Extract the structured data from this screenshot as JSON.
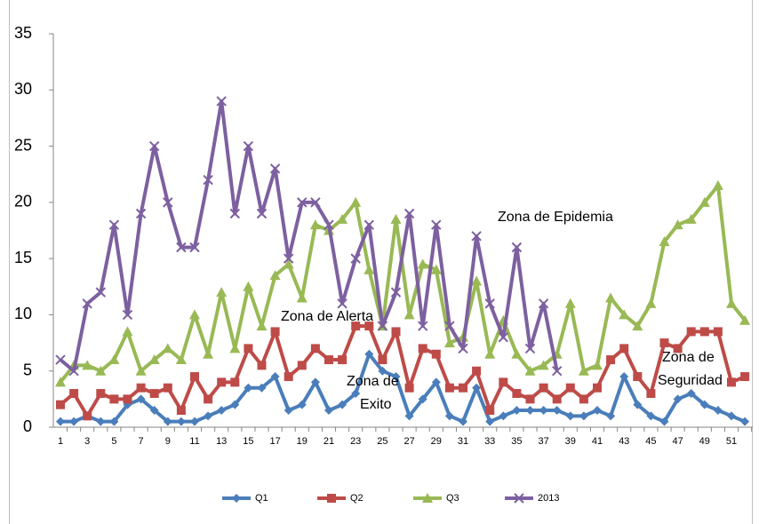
{
  "chart_data": {
    "type": "line",
    "categories": [
      1,
      null,
      3,
      null,
      5,
      null,
      7,
      null,
      9,
      null,
      11,
      null,
      13,
      null,
      15,
      null,
      17,
      null,
      19,
      null,
      21,
      null,
      23,
      null,
      25,
      null,
      27,
      null,
      29,
      null,
      31,
      null,
      33,
      null,
      35,
      null,
      37,
      null,
      39,
      null,
      41,
      null,
      43,
      null,
      45,
      null,
      47,
      null,
      49,
      null,
      51,
      null
    ],
    "series": [
      {
        "name": "Q1",
        "color": "#4a7ebb",
        "marker": "diamond",
        "values": [
          0.5,
          0.5,
          1,
          0.5,
          0.5,
          2,
          2.5,
          1.5,
          0.5,
          0.5,
          0.5,
          1,
          1.5,
          2,
          3.5,
          3.5,
          4.5,
          1.5,
          2,
          4,
          1.5,
          2,
          3,
          6.5,
          5,
          4.5,
          1,
          2.5,
          4,
          1,
          0.5,
          3.5,
          0.5,
          1,
          1.5,
          1.5,
          1.5,
          1.5,
          1,
          1,
          1.5,
          1,
          4.5,
          2,
          1,
          0.5,
          2.5,
          3,
          2,
          1.5,
          1,
          0.5
        ]
      },
      {
        "name": "Q2",
        "color": "#be4b48",
        "marker": "square",
        "values": [
          2,
          3,
          1,
          3,
          2.5,
          2.5,
          3.5,
          3,
          3.5,
          1.5,
          4.5,
          2.5,
          4,
          4,
          7,
          5.5,
          8.5,
          4.5,
          5.5,
          7,
          6,
          6,
          9,
          9,
          6,
          8.5,
          3.5,
          7,
          6.5,
          3.5,
          3.5,
          5,
          1.5,
          4,
          3,
          2.5,
          3.5,
          2.5,
          3.5,
          2.5,
          3.5,
          6,
          7,
          4.5,
          3,
          7.5,
          7,
          8.5,
          8.5,
          8.5,
          4,
          4.5
        ]
      },
      {
        "name": "Q3",
        "color": "#98b954",
        "marker": "triangle",
        "values": [
          4,
          5.5,
          5.5,
          5,
          6,
          8.5,
          5,
          6,
          7,
          6,
          10,
          6.5,
          12,
          7,
          12.5,
          9,
          13.5,
          14.5,
          11.5,
          18,
          17.5,
          18.5,
          20,
          14,
          9,
          18.5,
          10,
          14.5,
          14,
          7.5,
          8,
          13,
          6.5,
          9.5,
          6.5,
          5,
          5.5,
          6.5,
          11,
          5,
          5.5,
          11.5,
          10,
          9,
          11,
          16.5,
          18,
          18.5,
          20,
          21.5,
          11,
          9.5
        ]
      },
      {
        "name": "2013",
        "color": "#7d60a0",
        "marker": "x",
        "values": [
          6,
          5,
          11,
          12,
          18,
          10,
          19,
          25,
          20,
          16,
          16,
          22,
          29,
          19,
          25,
          19,
          23,
          15,
          20,
          20,
          18,
          11,
          15,
          18,
          9,
          12,
          19,
          9,
          18,
          9,
          7,
          17,
          11,
          8,
          16,
          7,
          11,
          5,
          null,
          null,
          null,
          null,
          null,
          null,
          null,
          null,
          null,
          null,
          null,
          null,
          null,
          null
        ]
      }
    ],
    "annotations": [
      [
        "Zona de Epidemia"
      ],
      [
        "Zona de Alerta"
      ],
      [
        "Zona de",
        "Exito"
      ],
      [
        "Zona de",
        "Seguridad"
      ]
    ],
    "ylim": [
      0,
      35
    ],
    "yticks": [
      0,
      5,
      10,
      15,
      20,
      25,
      30,
      35
    ],
    "grid": false,
    "legend": "bottom"
  }
}
